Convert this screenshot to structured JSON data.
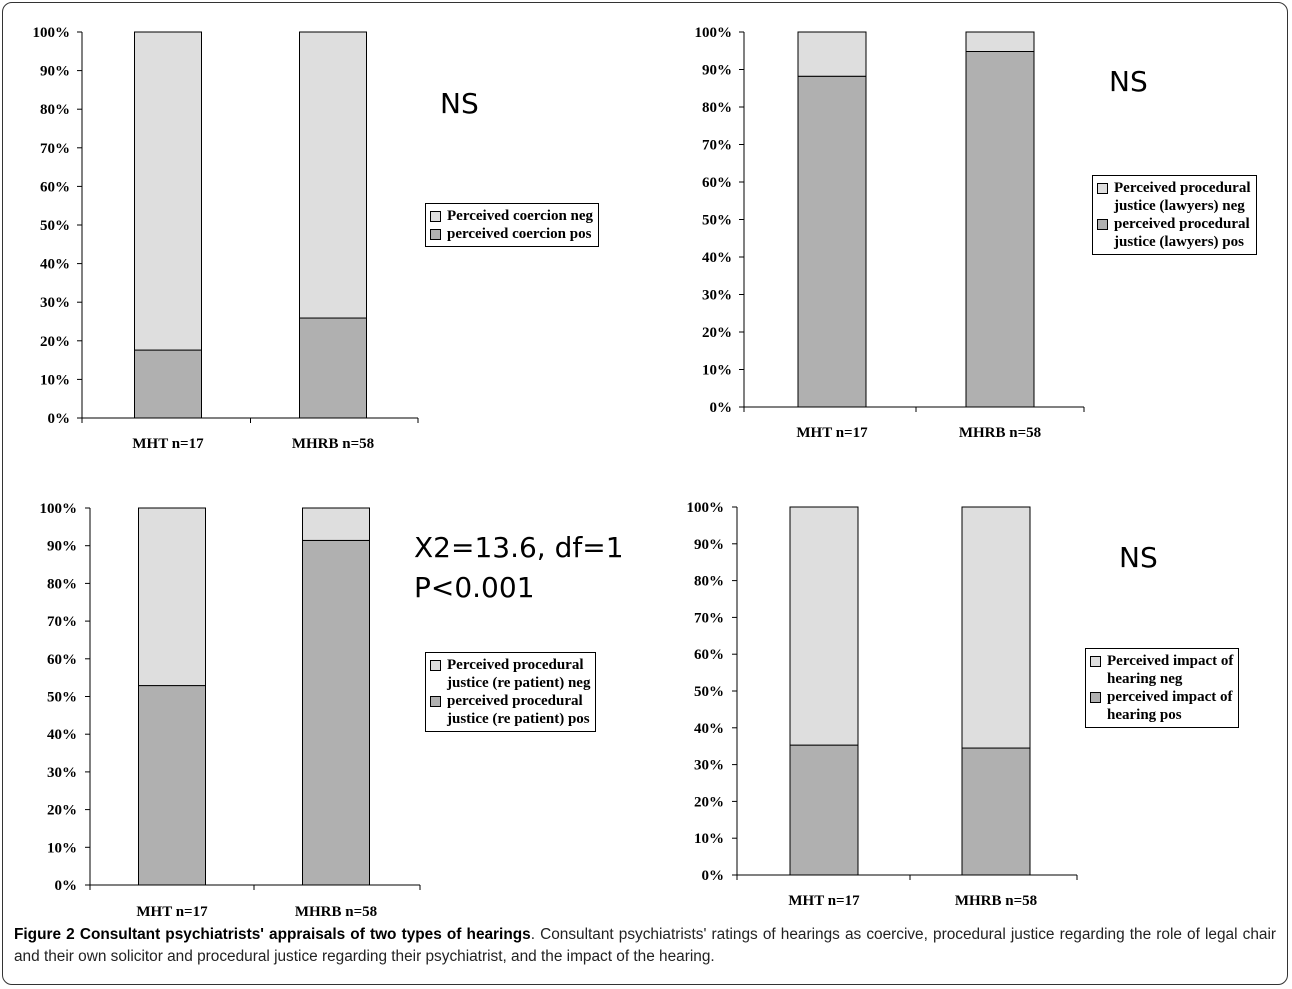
{
  "caption": {
    "bold": "Figure 2 Consultant psychiatrists' appraisals of two types of hearings",
    "text": ". Consultant psychiatrists' ratings of hearings as coercive, procedural justice regarding the role of legal chair and their own solicitor and procedural justice regarding their psychiatrist, and the impact of the hearing."
  },
  "colors": {
    "neg": "#dedede",
    "pos": "#b0b0b0",
    "axis": "#000000"
  },
  "chart_data": [
    {
      "type": "bar",
      "stacked": true,
      "categories": [
        "MHT n=17",
        "MHRB n=58"
      ],
      "y_ticks": [
        "0%",
        "10%",
        "20%",
        "30%",
        "40%",
        "50%",
        "60%",
        "70%",
        "80%",
        "90%",
        "100%"
      ],
      "ylim": [
        0,
        100
      ],
      "series": [
        {
          "name": "perceived coercion pos",
          "values": [
            17.6,
            25.9
          ]
        },
        {
          "name": "Perceived coercion neg",
          "values": [
            82.4,
            74.1
          ]
        }
      ],
      "legend": [
        "Perceived coercion neg",
        "perceived coercion pos"
      ],
      "annotation": "NS"
    },
    {
      "type": "bar",
      "stacked": true,
      "categories": [
        "MHT n=17",
        "MHRB n=58"
      ],
      "y_ticks": [
        "0%",
        "10%",
        "20%",
        "30%",
        "40%",
        "50%",
        "60%",
        "70%",
        "80%",
        "90%",
        "100%"
      ],
      "ylim": [
        0,
        100
      ],
      "series": [
        {
          "name": "perceived procedural\njustice (lawyers) pos",
          "values": [
            88.2,
            94.8
          ]
        },
        {
          "name": "Perceived procedural\njustice (lawyers) neg",
          "values": [
            11.8,
            5.2
          ]
        }
      ],
      "legend": [
        "Perceived procedural\njustice (lawyers) neg",
        "perceived procedural\njustice (lawyers) pos"
      ],
      "annotation": "NS"
    },
    {
      "type": "bar",
      "stacked": true,
      "categories": [
        "MHT n=17",
        "MHRB n=58"
      ],
      "y_ticks": [
        "0%",
        "10%",
        "20%",
        "30%",
        "40%",
        "50%",
        "60%",
        "70%",
        "80%",
        "90%",
        "100%"
      ],
      "ylim": [
        0,
        100
      ],
      "series": [
        {
          "name": "perceived procedural\njustice (re patient) pos",
          "values": [
            52.9,
            91.4
          ]
        },
        {
          "name": "Perceived procedural\njustice (re patient) neg",
          "values": [
            47.1,
            8.6
          ]
        }
      ],
      "legend": [
        "Perceived procedural\njustice (re patient) neg",
        "perceived procedural\njustice (re patient) pos"
      ],
      "annotation": "X2=13.6, df=1\nP<0.001"
    },
    {
      "type": "bar",
      "stacked": true,
      "categories": [
        "MHT n=17",
        "MHRB n=58"
      ],
      "y_ticks": [
        "0%",
        "10%",
        "20%",
        "30%",
        "40%",
        "50%",
        "60%",
        "70%",
        "80%",
        "90%",
        "100%"
      ],
      "ylim": [
        0,
        100
      ],
      "series": [
        {
          "name": "perceived impact of\nhearing pos",
          "values": [
            35.3,
            34.5
          ]
        },
        {
          "name": "Perceived impact of\nhearing neg",
          "values": [
            64.7,
            65.5
          ]
        }
      ],
      "legend": [
        "Perceived impact of\nhearing neg",
        "perceived impact of\nhearing pos"
      ],
      "annotation": "NS"
    }
  ]
}
